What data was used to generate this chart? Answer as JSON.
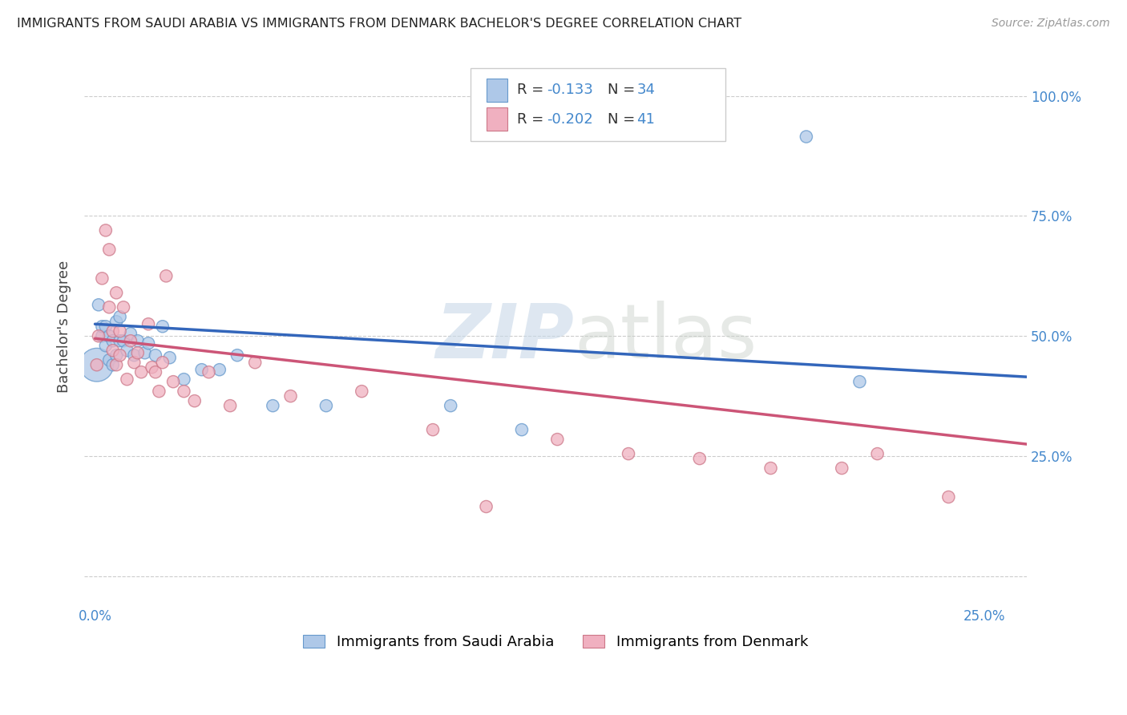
{
  "title": "IMMIGRANTS FROM SAUDI ARABIA VS IMMIGRANTS FROM DENMARK BACHELOR'S DEGREE CORRELATION CHART",
  "source": "Source: ZipAtlas.com",
  "ylabel": "Bachelor's Degree",
  "y_ticks": [
    0.0,
    0.25,
    0.5,
    0.75,
    1.0
  ],
  "y_tick_labels": [
    "",
    "25.0%",
    "50.0%",
    "75.0%",
    "100.0%"
  ],
  "xlim": [
    -0.003,
    0.262
  ],
  "ylim": [
    -0.06,
    1.1
  ],
  "background_color": "#ffffff",
  "grid_color": "#cccccc",
  "saudi_color": "#aec8e8",
  "denmark_color": "#f0b0c0",
  "saudi_edge": "#6699cc",
  "denmark_edge": "#cc7788",
  "saudi_line_color": "#3366bb",
  "denmark_line_color": "#cc5577",
  "R_saudi": -0.133,
  "N_saudi": 34,
  "R_denmark": -0.202,
  "N_denmark": 41,
  "saudi_line_x0": 0.0,
  "saudi_line_y0": 0.525,
  "saudi_line_x1": 0.262,
  "saudi_line_y1": 0.415,
  "denmark_line_x0": 0.0,
  "denmark_line_y0": 0.495,
  "denmark_line_x1": 0.262,
  "denmark_line_y1": 0.275,
  "saudi_points_x": [
    0.0005,
    0.001,
    0.002,
    0.002,
    0.003,
    0.003,
    0.004,
    0.004,
    0.005,
    0.005,
    0.006,
    0.006,
    0.007,
    0.007,
    0.008,
    0.009,
    0.01,
    0.011,
    0.012,
    0.014,
    0.015,
    0.017,
    0.019,
    0.021,
    0.025,
    0.03,
    0.035,
    0.04,
    0.05,
    0.065,
    0.1,
    0.12,
    0.2,
    0.215
  ],
  "saudi_points_y": [
    0.44,
    0.565,
    0.5,
    0.52,
    0.48,
    0.52,
    0.45,
    0.5,
    0.44,
    0.49,
    0.46,
    0.53,
    0.49,
    0.54,
    0.49,
    0.47,
    0.505,
    0.46,
    0.49,
    0.465,
    0.485,
    0.46,
    0.52,
    0.455,
    0.41,
    0.43,
    0.43,
    0.46,
    0.355,
    0.355,
    0.355,
    0.305,
    0.915,
    0.405
  ],
  "denmark_points_x": [
    0.0005,
    0.001,
    0.002,
    0.003,
    0.004,
    0.004,
    0.005,
    0.005,
    0.006,
    0.006,
    0.007,
    0.007,
    0.008,
    0.009,
    0.01,
    0.011,
    0.012,
    0.013,
    0.015,
    0.016,
    0.017,
    0.018,
    0.019,
    0.02,
    0.022,
    0.025,
    0.028,
    0.032,
    0.038,
    0.045,
    0.055,
    0.075,
    0.095,
    0.11,
    0.13,
    0.15,
    0.17,
    0.19,
    0.21,
    0.22,
    0.24
  ],
  "denmark_points_y": [
    0.44,
    0.5,
    0.62,
    0.72,
    0.56,
    0.68,
    0.47,
    0.51,
    0.44,
    0.59,
    0.46,
    0.51,
    0.56,
    0.41,
    0.49,
    0.445,
    0.465,
    0.425,
    0.525,
    0.435,
    0.425,
    0.385,
    0.445,
    0.625,
    0.405,
    0.385,
    0.365,
    0.425,
    0.355,
    0.445,
    0.375,
    0.385,
    0.305,
    0.145,
    0.285,
    0.255,
    0.245,
    0.225,
    0.225,
    0.255,
    0.165
  ],
  "legend_saudi_label": "Immigrants from Saudi Arabia",
  "legend_denmark_label": "Immigrants from Denmark"
}
